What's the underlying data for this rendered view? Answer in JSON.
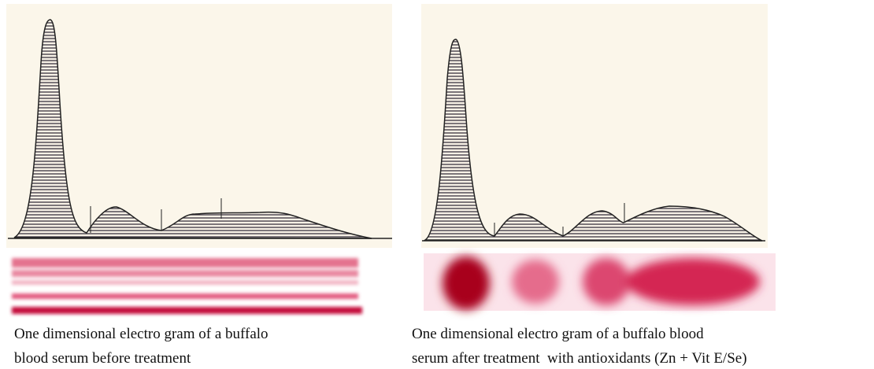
{
  "figures": [
    {
      "caption": [
        "One dimensional electro gram of a buffalo",
        "blood serum before treatment"
      ]
    },
    {
      "caption": [
        "One dimensional electro gram of a buffalo blood",
        "serum after treatment  with antioxidants (Zn + Vit E/Se)"
      ]
    }
  ]
}
